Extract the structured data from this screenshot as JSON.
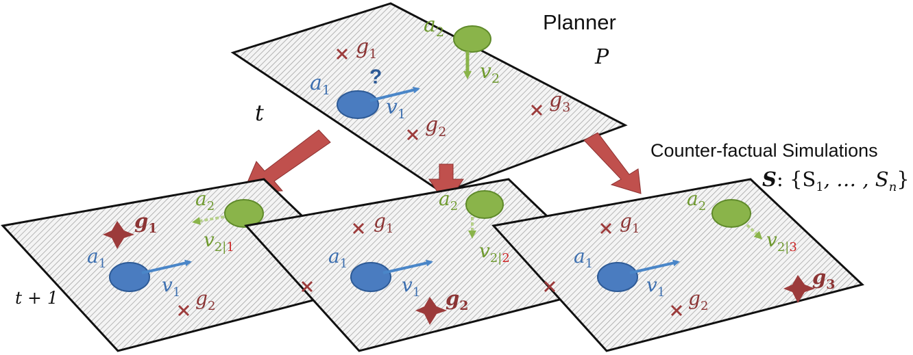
{
  "planner": {
    "title": "Planner",
    "symbol": "P",
    "time_label": "t",
    "question": "?",
    "agents": {
      "a1": "a",
      "a1_sub": "1",
      "v1": "v",
      "v1_sub": "1",
      "a2": "a",
      "a2_sub": "2",
      "v2": "v",
      "v2_sub": "2"
    },
    "goals": {
      "g1": "g",
      "g1_sub": "1",
      "g2": "g",
      "g2_sub": "2",
      "g3": "g",
      "g3_sub": "3"
    }
  },
  "simulations": {
    "title": "Counter-factual Simulations",
    "set_symbol": "S",
    "set_expr": ": {S",
    "set_sub1": "1",
    "set_mid": ", … , S",
    "set_subn": "n",
    "set_close": "}",
    "time_label": "t + 1",
    "boards": [
      {
        "a1": "a",
        "a1_sub": "1",
        "v1": "v",
        "v1_sub": "1",
        "a2": "a",
        "a2_sub": "2",
        "v2": "v",
        "v2_sub": "2|",
        "cond": "1",
        "goal_a": "g",
        "goal_a_sub": "1",
        "goal_b": "g",
        "goal_b_sub": "2"
      },
      {
        "a1": "a",
        "a1_sub": "1",
        "v1": "v",
        "v1_sub": "1",
        "a2": "a",
        "a2_sub": "2",
        "v2": "v",
        "v2_sub": "2|",
        "cond": "2",
        "goal_a": "g",
        "goal_a_sub": "1",
        "goal_b": "g",
        "goal_b_sub": "2"
      },
      {
        "a1": "a",
        "a1_sub": "1",
        "v1": "v",
        "v1_sub": "1",
        "a2": "a",
        "a2_sub": "2",
        "v2": "v",
        "v2_sub": "2|",
        "cond": "3",
        "goal_a": "g",
        "goal_a_sub": "1",
        "goal_b": "g",
        "goal_b_sub": "2",
        "goal_c": "g",
        "goal_c_sub": "3"
      }
    ]
  },
  "colors": {
    "agent1": "#4a7cc0",
    "agent2": "#8ab44a",
    "goal": "#9c3b3b",
    "arrow": "#c0504d"
  }
}
